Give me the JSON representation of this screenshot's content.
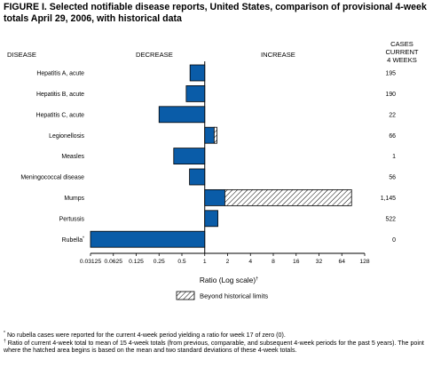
{
  "header": {
    "title": "FIGURE I. Selected notifiable disease reports, United States, comparison of provisional 4-week totals April 29, 2006, with historical data"
  },
  "columns": {
    "disease": "DISEASE",
    "decrease": "DECREASE",
    "increase": "INCREASE",
    "cases_line1": "CASES CURRENT",
    "cases_line2": "4 WEEKS"
  },
  "legend": {
    "label": "Beyond historical limits"
  },
  "footnotes": [
    {
      "mark": "*",
      "text": "No rubella cases were reported for the current 4-week period yielding a ratio for week 17 of zero (0)."
    },
    {
      "mark": "†",
      "text": "Ratio of current 4-week total to mean of 15 4-week totals (from previous, comparable, and subsequent 4-week periods for the past 5 years). The point where the hatched area begins is based on the mean and two standard deviations of these 4-week totals."
    }
  ],
  "colors": {
    "bar": "#0a5ca8",
    "outline": "#000000"
  },
  "chart_data": {
    "type": "bar",
    "orientation": "horizontal",
    "xlabel": "Ratio (Log scale)",
    "xlabel_mark": "†",
    "x_scale": "log2",
    "xlim": [
      0.03125,
      128
    ],
    "x_ticks": [
      "0.03125",
      "0.0625",
      "0.125",
      "0.25",
      "0.5",
      "1",
      "2",
      "4",
      "8",
      "16",
      "32",
      "64",
      "128"
    ],
    "x_tick_values": [
      0.03125,
      0.0625,
      0.125,
      0.25,
      0.5,
      1,
      2,
      4,
      8,
      16,
      32,
      64,
      128
    ],
    "reference_line": 1,
    "categories": [
      "Hepatitis A, acute",
      "Hepatitis B, acute",
      "Hepatitis C, acute",
      "Legionellosis",
      "Measles",
      "Meningococcal disease",
      "Mumps",
      "Pertussis",
      "Rubella"
    ],
    "category_marks": [
      "",
      "",
      "",
      "",
      "",
      "",
      "",
      "",
      "*"
    ],
    "values": [
      0.64,
      0.57,
      0.25,
      1.45,
      0.39,
      0.63,
      86,
      1.49,
      0.03125
    ],
    "beyond_historical_limits_start": [
      null,
      null,
      null,
      1.33,
      null,
      null,
      1.84,
      null,
      null
    ],
    "cases_current_4_weeks": [
      "195",
      "190",
      "22",
      "66",
      "1",
      "56",
      "1,145",
      "522",
      "0"
    ],
    "grid": false,
    "legend_position": "bottom-center"
  }
}
